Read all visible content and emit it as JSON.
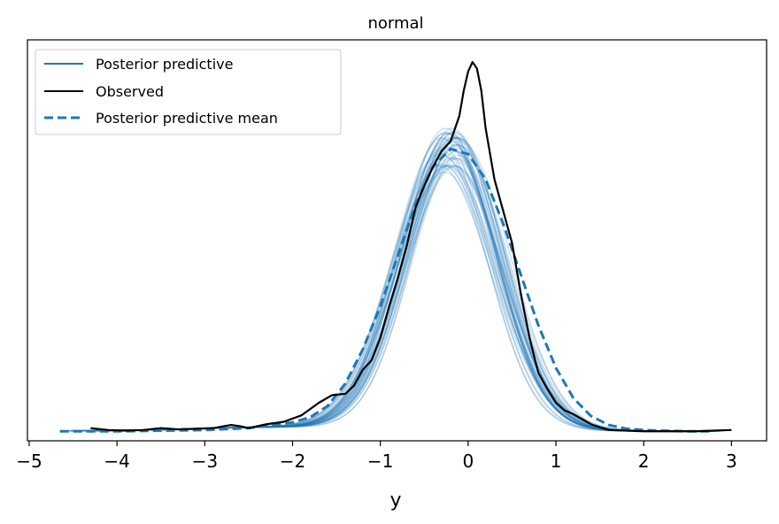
{
  "chart_data": {
    "type": "line",
    "title": "normal",
    "xlabel": "y",
    "ylabel": "",
    "xlim": [
      -5.02,
      3.4
    ],
    "ylim": [
      -0.012,
      0.62
    ],
    "x_ticks": [
      -5,
      -4,
      -3,
      -2,
      -1,
      0,
      1,
      2,
      3
    ],
    "x_tick_labels": [
      "−5",
      "−4",
      "−3",
      "−2",
      "−1",
      "0",
      "1",
      "2",
      "3"
    ],
    "y_ticks_shown": false,
    "grid": false,
    "legend_position": "top-left",
    "legend": [
      {
        "label": "Posterior predictive",
        "style": "solid",
        "color": "#1f77b4"
      },
      {
        "label": "Observed",
        "style": "solid",
        "color": "#000000"
      },
      {
        "label": "Posterior predictive mean",
        "style": "dashed",
        "color": "#1f77b4"
      }
    ],
    "colors": {
      "posterior_predictive": "#1f77b4",
      "observed": "#000000",
      "mean": "#1f77b4"
    },
    "series": [
      {
        "name": "Observed",
        "x": [
          -4.3,
          -4.1,
          -3.9,
          -3.7,
          -3.5,
          -3.3,
          -3.1,
          -2.9,
          -2.7,
          -2.6,
          -2.5,
          -2.4,
          -2.3,
          -2.1,
          -1.9,
          -1.7,
          -1.55,
          -1.4,
          -1.3,
          -1.2,
          -1.1,
          -1.0,
          -0.9,
          -0.8,
          -0.7,
          -0.6,
          -0.5,
          -0.4,
          -0.3,
          -0.2,
          -0.1,
          -0.05,
          0.0,
          0.05,
          0.1,
          0.15,
          0.2,
          0.3,
          0.4,
          0.5,
          0.6,
          0.7,
          0.8,
          0.9,
          1.0,
          1.1,
          1.2,
          1.4,
          1.6,
          1.8,
          2.0,
          2.2,
          2.4,
          2.6,
          2.8,
          3.0
        ],
        "y": [
          0.008,
          0.005,
          0.004,
          0.005,
          0.008,
          0.006,
          0.007,
          0.008,
          0.013,
          0.011,
          0.008,
          0.011,
          0.014,
          0.018,
          0.028,
          0.048,
          0.06,
          0.062,
          0.075,
          0.1,
          0.115,
          0.15,
          0.2,
          0.245,
          0.295,
          0.355,
          0.39,
          0.42,
          0.445,
          0.46,
          0.5,
          0.54,
          0.57,
          0.585,
          0.575,
          0.54,
          0.48,
          0.4,
          0.35,
          0.3,
          0.22,
          0.15,
          0.095,
          0.07,
          0.048,
          0.036,
          0.03,
          0.014,
          0.005,
          0.004,
          0.003,
          0.003,
          0.003,
          0.003,
          0.004,
          0.005
        ]
      },
      {
        "name": "Posterior predictive mean",
        "x": [
          -4.65,
          -4.5,
          -4.0,
          -3.5,
          -3.0,
          -2.5,
          -2.0,
          -1.8,
          -1.6,
          -1.4,
          -1.2,
          -1.0,
          -0.8,
          -0.6,
          -0.4,
          -0.2,
          0.0,
          0.2,
          0.4,
          0.6,
          0.8,
          1.0,
          1.2,
          1.4,
          1.6,
          1.8,
          2.0,
          2.2,
          2.5,
          2.75
        ],
        "y": [
          0.003,
          0.003,
          0.003,
          0.004,
          0.005,
          0.008,
          0.017,
          0.025,
          0.043,
          0.078,
          0.132,
          0.2,
          0.28,
          0.36,
          0.42,
          0.448,
          0.44,
          0.4,
          0.33,
          0.25,
          0.17,
          0.103,
          0.055,
          0.027,
          0.013,
          0.007,
          0.005,
          0.004,
          0.003,
          0.003
        ]
      }
    ],
    "posterior_predictive_draws": {
      "count": 40,
      "note_from_legend": "Posterior predictive",
      "peak_range": [
        0.41,
        0.475
      ],
      "center_range": [
        -0.3,
        -0.1
      ],
      "spread_range": [
        0.52,
        0.58
      ]
    }
  }
}
